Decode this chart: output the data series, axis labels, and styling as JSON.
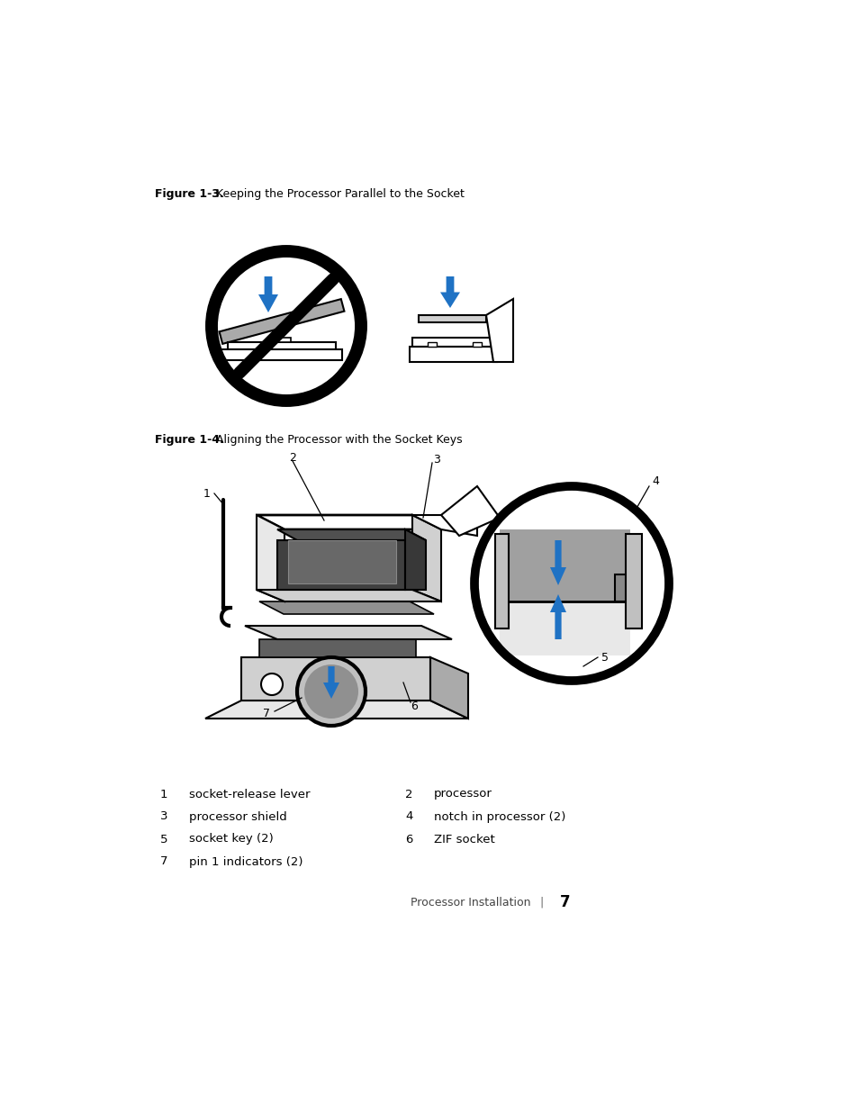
{
  "bg_color": "#ffffff",
  "fig_width": 9.54,
  "fig_height": 12.35,
  "fig13_label": "Figure 1-3.",
  "fig13_title": "   Keeping the Processor Parallel to the Socket",
  "fig14_label": "Figure 1-4.",
  "fig14_title": "   Aligning the Processor with the Socket Keys",
  "legend": [
    {
      "n1": "1",
      "t1": "socket-release lever",
      "n2": "2",
      "t2": "processor"
    },
    {
      "n1": "3",
      "t1": "processor shield",
      "n2": "4",
      "t2": "notch in processor (2)"
    },
    {
      "n1": "5",
      "t1": "socket key (2)",
      "n2": "6",
      "t2": "ZIF socket"
    },
    {
      "n1": "7",
      "t1": "pin 1 indicators (2)",
      "n2": "",
      "t2": ""
    }
  ],
  "footer_left": "Processor Installation",
  "footer_sep": "|",
  "footer_page": "7",
  "arrow_color": "#1F72C4",
  "black": "#000000",
  "gray_dark": "#808080",
  "gray_med": "#aaaaaa",
  "gray_light": "#d0d0d0",
  "gray_lighter": "#e8e8e8"
}
